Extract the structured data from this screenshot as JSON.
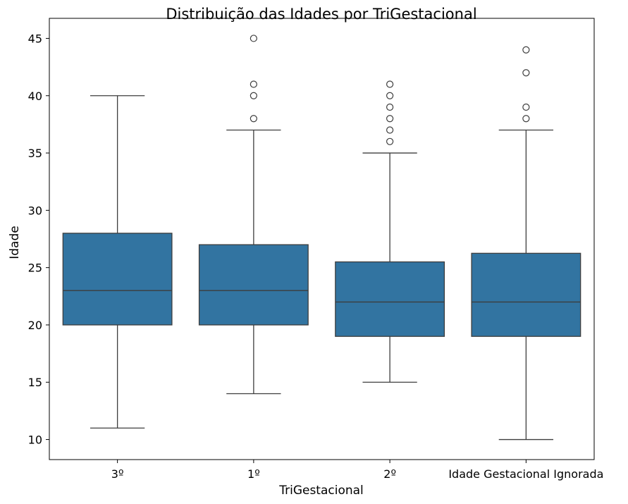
{
  "chart_data": {
    "type": "boxplot",
    "title": "Distribuição das Idades por TriGestacional",
    "xlabel": "TriGestacional",
    "ylabel": "Idade",
    "ylim": [
      8.25,
      46.75
    ],
    "yticks": [
      10,
      15,
      20,
      25,
      30,
      35,
      40,
      45
    ],
    "grid": false,
    "box_color": "#3274a1",
    "line_color": "#3d3d3d",
    "categories": [
      "3º",
      "1º",
      "2º",
      "Idade Gestacional Ignorada"
    ],
    "boxes": [
      {
        "category": "3º",
        "whisker_low": 11,
        "q1": 20,
        "median": 23,
        "q3": 28,
        "whisker_high": 40,
        "outliers": []
      },
      {
        "category": "1º",
        "whisker_low": 14,
        "q1": 20,
        "median": 23,
        "q3": 27,
        "whisker_high": 37,
        "outliers": [
          38,
          40,
          41,
          45
        ]
      },
      {
        "category": "2º",
        "whisker_low": 15,
        "q1": 19,
        "median": 22,
        "q3": 25.5,
        "whisker_high": 35,
        "outliers": [
          36,
          37,
          38,
          39,
          40,
          41
        ]
      },
      {
        "category": "Idade Gestacional Ignorada",
        "whisker_low": 10,
        "q1": 19,
        "median": 22,
        "q3": 26.25,
        "whisker_high": 37,
        "outliers": [
          38,
          39,
          42,
          44
        ]
      }
    ]
  }
}
